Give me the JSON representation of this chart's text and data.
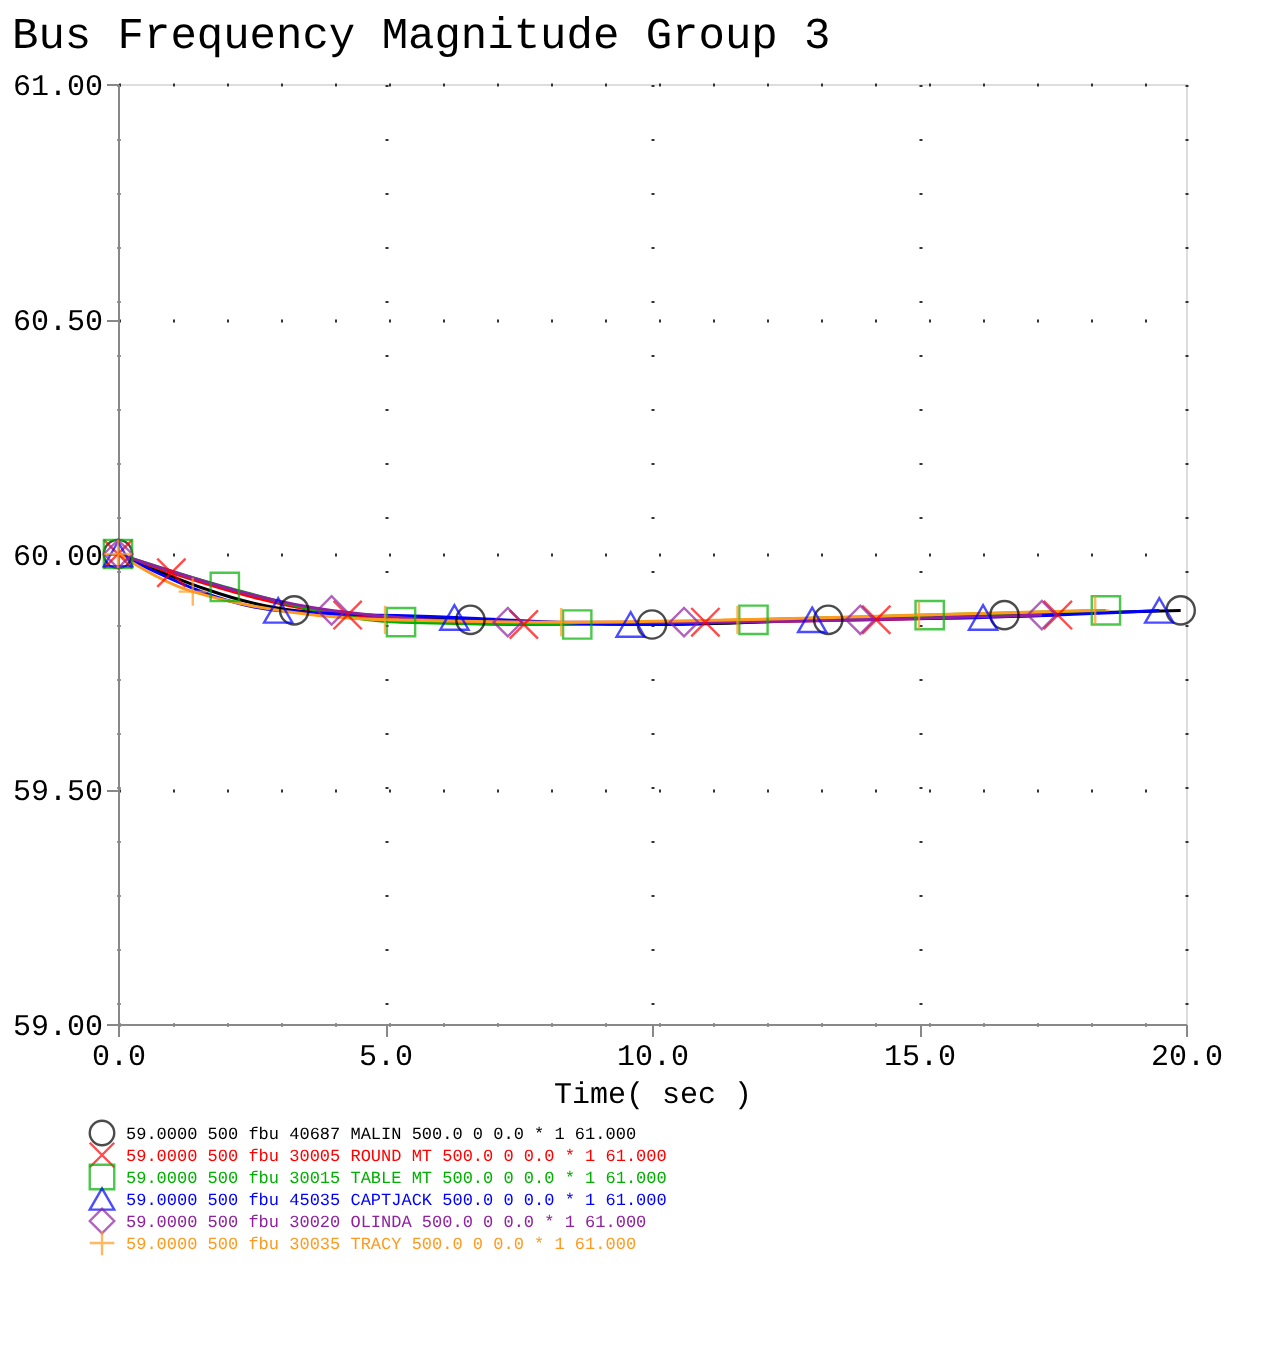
{
  "chart_data": {
    "type": "line",
    "title": "Bus Frequency Magnitude Group 3",
    "xlabel": "Time( sec )",
    "xlim": [
      0,
      20
    ],
    "ylim": [
      59,
      61
    ],
    "xticks": [
      {
        "value": 0,
        "label": "0.0"
      },
      {
        "value": 5,
        "label": "5.0"
      },
      {
        "value": 10,
        "label": "10.0"
      },
      {
        "value": 15,
        "label": "15.0"
      },
      {
        "value": 20,
        "label": "20.0"
      }
    ],
    "yticks": [
      {
        "value": 59,
        "label": "59.00"
      },
      {
        "value": 59.5,
        "label": "59.50"
      },
      {
        "value": 60,
        "label": "60.00"
      },
      {
        "value": 60.5,
        "label": "60.50"
      },
      {
        "value": 61,
        "label": "61.00"
      }
    ],
    "grid": true,
    "legend": "bottom",
    "series": [
      {
        "name": "59.0000 500 fbu 40687        MALIN 500.0     0          0.0  *  1  61.000",
        "color": "#000000",
        "marker": "circle",
        "x": [
          0,
          3.3,
          6.6,
          10.0,
          13.3,
          16.6,
          19.9
        ],
        "values": [
          60.0,
          59.88,
          59.86,
          59.85,
          59.86,
          59.87,
          59.88
        ]
      },
      {
        "name": "59.0000 500 fbu 30005     ROUND MT 500.0     0          0.0  *  1  61.000",
        "color": "#ff0000",
        "marker": "x",
        "x": [
          0,
          1.0,
          4.3,
          7.6,
          11.0,
          14.2,
          17.6
        ],
        "values": [
          60.0,
          59.96,
          59.87,
          59.85,
          59.855,
          59.86,
          59.87
        ]
      },
      {
        "name": "59.0000 500 fbu 30015     TABLE MT 500.0     0          0.0  *  1  61.000",
        "color": "#00b000",
        "marker": "square",
        "x": [
          0,
          2.0,
          5.3,
          8.6,
          11.9,
          15.2,
          18.5
        ],
        "values": [
          60.0,
          59.93,
          59.855,
          59.85,
          59.86,
          59.87,
          59.88
        ]
      },
      {
        "name": "59.0000 500 fbu 45035     CAPTJACK 500.0     0          0.0  *  1  61.000",
        "color": "#0000ff",
        "marker": "triangle",
        "x": [
          0,
          3.0,
          6.3,
          9.6,
          13.0,
          16.2,
          19.5
        ],
        "values": [
          60.0,
          59.88,
          59.865,
          59.85,
          59.86,
          59.865,
          59.88
        ]
      },
      {
        "name": "59.0000 500 fbu 30020       OLINDA 500.0     0          0.0  *  1  61.000",
        "color": "#9020a0",
        "marker": "diamond",
        "x": [
          0,
          4.0,
          7.3,
          10.6,
          13.9,
          17.3
        ],
        "values": [
          60.0,
          59.88,
          59.855,
          59.855,
          59.86,
          59.87
        ]
      },
      {
        "name": "59.0000 500 fbu 30035        TRACY 500.0     0          0.0  *  1  61.000",
        "color": "#ff9a20",
        "marker": "cross",
        "x": [
          0,
          1.4,
          5.0,
          8.3,
          11.6,
          15.0,
          18.3
        ],
        "values": [
          60.0,
          59.92,
          59.86,
          59.855,
          59.86,
          59.87,
          59.88
        ]
      }
    ]
  }
}
